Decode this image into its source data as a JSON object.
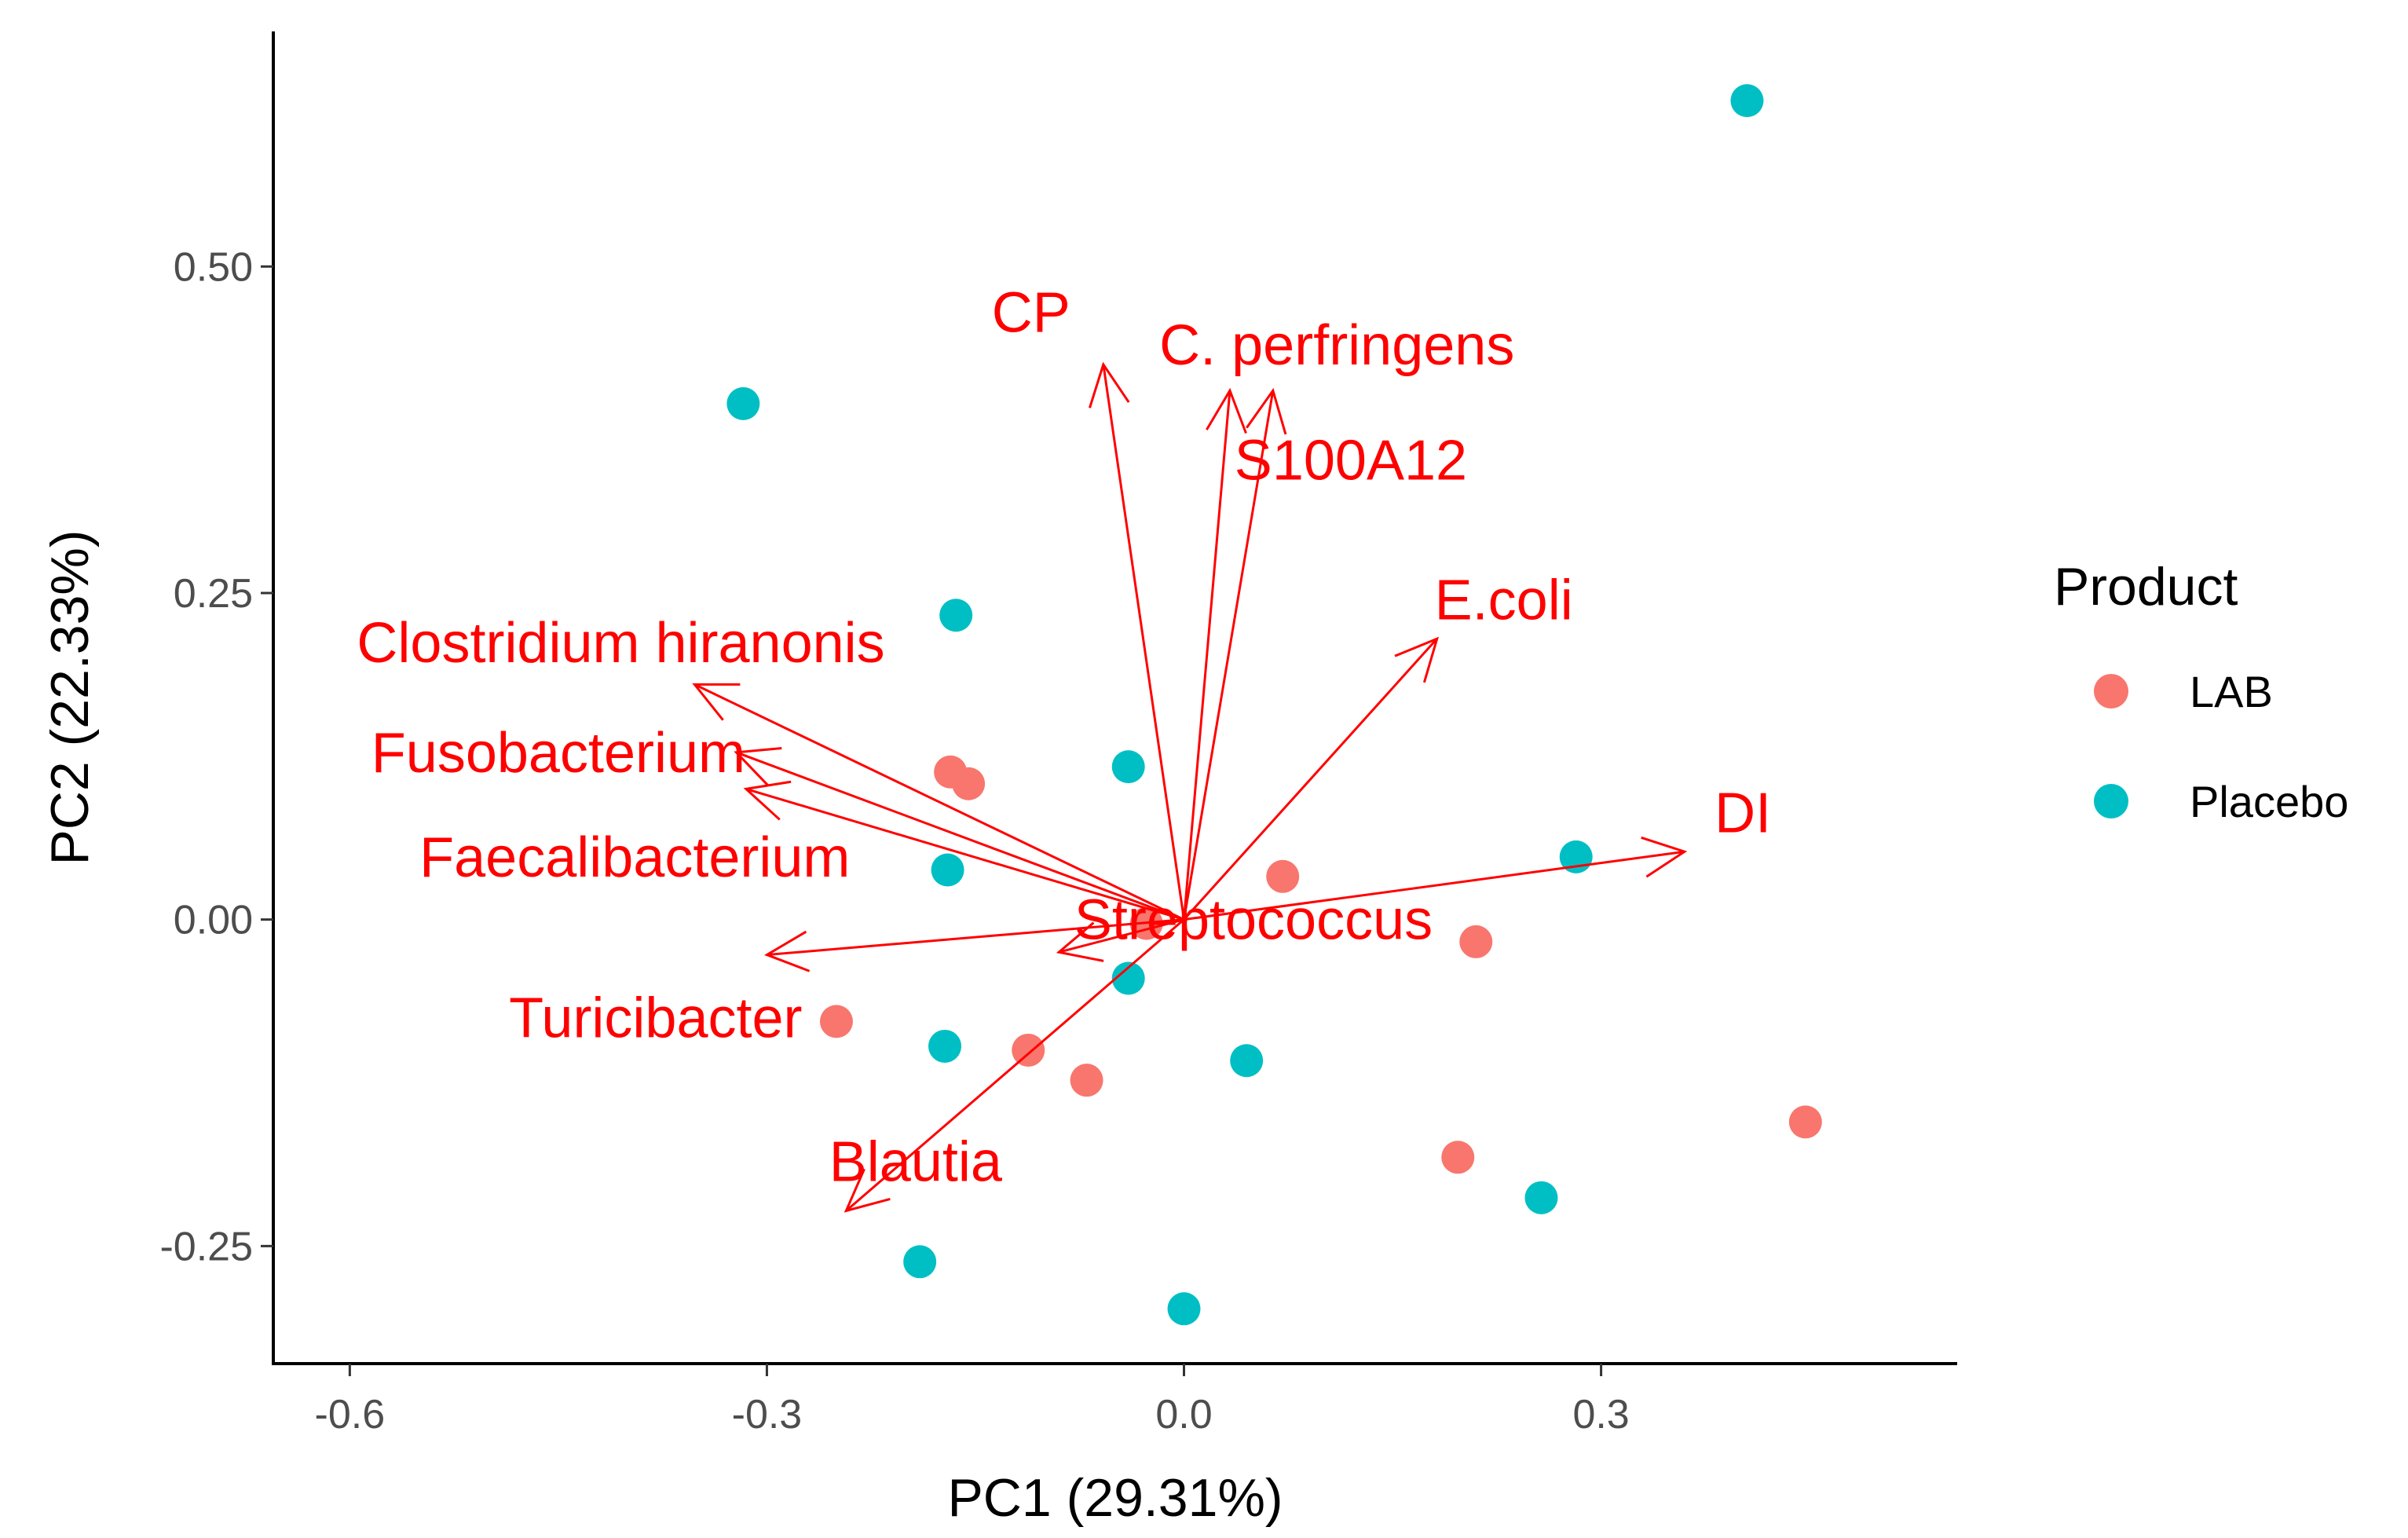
{
  "chart_data": {
    "type": "scatter",
    "subtype": "pca-biplot",
    "xlabel": "PC1 (29.31%)",
    "ylabel": "PC2 (22.33%)",
    "xlim": [
      -0.655,
      0.555
    ],
    "ylim": [
      -0.34,
      0.68
    ],
    "x_ticks": [
      -0.6,
      -0.3,
      0.0,
      0.3
    ],
    "x_tick_labels": [
      "-0.6",
      "-0.3",
      "0.0",
      "0.3"
    ],
    "y_ticks": [
      -0.25,
      0.0,
      0.25,
      0.5
    ],
    "y_tick_labels": [
      "-0.25",
      "0.00",
      "0.25",
      "0.50"
    ],
    "grid": false,
    "legend": {
      "title": "Product",
      "placement": "right",
      "entries": [
        {
          "label": "LAB",
          "color": "#F8766D"
        },
        {
          "label": "Placebo",
          "color": "#00BFC4"
        }
      ]
    },
    "series": [
      {
        "name": "LAB",
        "color": "#F8766D",
        "points": [
          [
            -0.168,
            0.113
          ],
          [
            -0.155,
            0.104
          ],
          [
            0.071,
            0.033
          ],
          [
            -0.027,
            -0.003
          ],
          [
            0.21,
            -0.017
          ],
          [
            -0.25,
            -0.078
          ],
          [
            -0.112,
            -0.1
          ],
          [
            -0.07,
            -0.123
          ],
          [
            0.197,
            -0.182
          ],
          [
            0.447,
            -0.155
          ]
        ]
      },
      {
        "name": "Placebo",
        "color": "#00BFC4",
        "points": [
          [
            0.405,
            0.627
          ],
          [
            -0.317,
            0.395
          ],
          [
            -0.164,
            0.233
          ],
          [
            -0.04,
            0.117
          ],
          [
            0.282,
            0.048
          ],
          [
            -0.17,
            0.038
          ],
          [
            -0.04,
            -0.045
          ],
          [
            -0.172,
            -0.097
          ],
          [
            0.045,
            -0.108
          ],
          [
            0.257,
            -0.213
          ],
          [
            -0.19,
            -0.262
          ],
          [
            0.0,
            -0.298
          ]
        ]
      }
    ],
    "loadings": {
      "color": "#FF0000",
      "origin": [
        0.0,
        0.0
      ],
      "vectors": [
        {
          "label": "CP",
          "x": -0.058,
          "y": 0.425
        },
        {
          "label": "C. perfringens",
          "x": 0.033,
          "y": 0.405
        },
        {
          "label": "S100A12",
          "x": 0.064,
          "y": 0.405
        },
        {
          "label": "E.coli",
          "x": 0.182,
          "y": 0.215
        },
        {
          "label": "DI",
          "x": 0.36,
          "y": 0.052
        },
        {
          "label": "Clostridium hiranonis",
          "x": -0.352,
          "y": 0.18
        },
        {
          "label": "Fusobacterium",
          "x": -0.322,
          "y": 0.128
        },
        {
          "label": "Faecalibacterium",
          "x": -0.315,
          "y": 0.1
        },
        {
          "label": "Streptococcus",
          "x": -0.09,
          "y": -0.025
        },
        {
          "label": "Turicibacter",
          "x": -0.3,
          "y": -0.027
        },
        {
          "label": "Blautia",
          "x": -0.243,
          "y": -0.223
        }
      ],
      "label_positions": [
        {
          "label": "CP",
          "x": -0.11,
          "y": 0.465
        },
        {
          "label": "C. perfringens",
          "x": 0.11,
          "y": 0.44
        },
        {
          "label": "S100A12",
          "x": 0.12,
          "y": 0.352
        },
        {
          "label": "E.coli",
          "x": 0.23,
          "y": 0.245
        },
        {
          "label": "DI",
          "x": 0.402,
          "y": 0.082
        },
        {
          "label": "Clostridium hiranonis",
          "x": -0.405,
          "y": 0.212
        },
        {
          "label": "Fusobacterium",
          "x": -0.45,
          "y": 0.128
        },
        {
          "label": "Faecalibacterium",
          "x": -0.395,
          "y": 0.048
        },
        {
          "label": "Streptococcus",
          "x": 0.05,
          "y": 0.0
        },
        {
          "label": "Turicibacter",
          "x": -0.38,
          "y": -0.075
        },
        {
          "label": "Blautia",
          "x": -0.193,
          "y": -0.185
        }
      ]
    }
  }
}
